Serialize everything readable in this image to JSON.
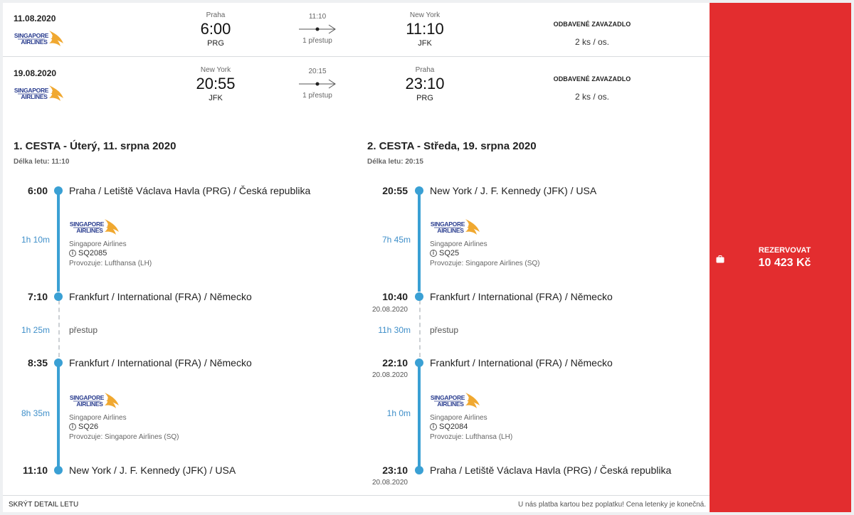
{
  "airline": {
    "name": "Singapore Airlines",
    "logo_text_1": "SINGAPORE",
    "logo_text_2": "AIRLINES"
  },
  "summary": [
    {
      "date": "11.08.2020",
      "from_city": "Praha",
      "from_time": "6:00",
      "from_code": "PRG",
      "duration": "11:10",
      "stops": "1 přestup",
      "to_city": "New York",
      "to_time": "11:10",
      "to_code": "JFK",
      "baggage_label": "ODBAVENÉ ZAVAZADLO",
      "baggage_value": "2 ks / os."
    },
    {
      "date": "19.08.2020",
      "from_city": "New York",
      "from_time": "20:55",
      "from_code": "JFK",
      "duration": "20:15",
      "stops": "1 přestup",
      "to_city": "Praha",
      "to_time": "23:10",
      "to_code": "PRG",
      "baggage_label": "ODBAVENÉ ZAVAZADLO",
      "baggage_value": "2 ks / os."
    }
  ],
  "trips": [
    {
      "title": "1. CESTA - Úterý, 11. srpna 2020",
      "length": "Délka letu: 11:10",
      "stops": [
        {
          "time": "6:00",
          "date": "",
          "place": "Praha / Letiště Václava Havla (PRG) / Česká republika"
        },
        {
          "time": "7:10",
          "date": "",
          "place": "Frankfurt / International (FRA) / Německo"
        },
        {
          "time": "8:35",
          "date": "",
          "place": "Frankfurt / International (FRA) / Německo"
        },
        {
          "time": "11:10",
          "date": "",
          "place": "New York / J. F. Kennedy (JFK) / USA"
        }
      ],
      "segments": [
        {
          "duration": "1h 10m",
          "airline": "Singapore Airlines",
          "flight": "SQ2085",
          "operator": "Provozuje: Lufthansa (LH)"
        },
        {
          "duration": "8h 35m",
          "airline": "Singapore Airlines",
          "flight": "SQ26",
          "operator": "Provozuje: Singapore Airlines (SQ)"
        }
      ],
      "transfer": {
        "duration": "1h 25m",
        "label": "přestup"
      }
    },
    {
      "title": "2. CESTA - Středa, 19. srpna 2020",
      "length": "Délka letu: 20:15",
      "stops": [
        {
          "time": "20:55",
          "date": "",
          "place": "New York / J. F. Kennedy (JFK) / USA"
        },
        {
          "time": "10:40",
          "date": "20.08.2020",
          "place": "Frankfurt / International (FRA) / Německo"
        },
        {
          "time": "22:10",
          "date": "20.08.2020",
          "place": "Frankfurt / International (FRA) / Německo"
        },
        {
          "time": "23:10",
          "date": "20.08.2020",
          "place": "Praha / Letiště Václava Havla (PRG) / Česká republika"
        }
      ],
      "segments": [
        {
          "duration": "7h 45m",
          "airline": "Singapore Airlines",
          "flight": "SQ25",
          "operator": "Provozuje: Singapore Airlines (SQ)"
        },
        {
          "duration": "1h 0m",
          "airline": "Singapore Airlines",
          "flight": "SQ2084",
          "operator": "Provozuje: Lufthansa (LH)"
        }
      ],
      "transfer": {
        "duration": "11h 30m",
        "label": "přestup"
      }
    }
  ],
  "footer": {
    "hide_label": "SKRÝT DETAIL LETU",
    "note": "U nás platba kartou bez poplatku! Cena letenky je konečná."
  },
  "book": {
    "label": "REZERVOVAT",
    "price": "10 423 Kč"
  },
  "colors": {
    "accent": "#3aa0d4",
    "book_bg": "#e32d2f",
    "logo_blue": "#2a3d8f",
    "logo_gold": "#f0a830"
  },
  "icons": {
    "info": "i",
    "bag": "suitcase-icon",
    "arrow": "arrow-right-icon"
  }
}
